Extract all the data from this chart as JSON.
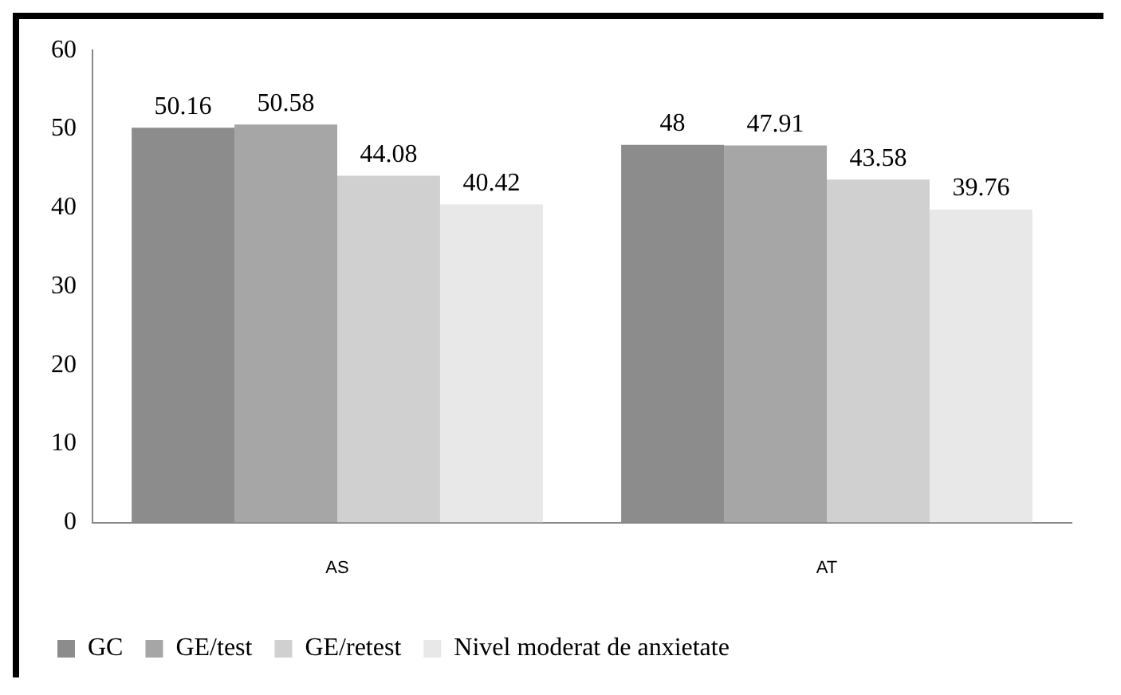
{
  "chart_data": {
    "type": "bar",
    "categories": [
      "AS",
      "AT"
    ],
    "series": [
      {
        "name": "GC",
        "color": "#8c8c8c",
        "values": [
          50.16,
          48
        ]
      },
      {
        "name": "GE/test",
        "color": "#a6a6a6",
        "values": [
          50.58,
          47.91
        ]
      },
      {
        "name": "GE/retest",
        "color": "#d0d0d0",
        "values": [
          44.08,
          43.58
        ]
      },
      {
        "name": "Nivel moderat de anxietate",
        "color": "#e8e8e8",
        "values": [
          40.42,
          39.76
        ]
      }
    ],
    "ylim": [
      0,
      60
    ],
    "yticks": [
      0,
      10,
      20,
      30,
      40,
      50,
      60
    ],
    "grid": false,
    "legend": "bottom",
    "data_labels": true
  }
}
